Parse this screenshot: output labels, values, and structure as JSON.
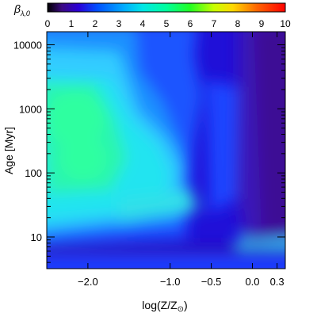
{
  "chart_data": {
    "type": "heatmap",
    "colorbar": {
      "label": "β",
      "label_sub": "λ,0",
      "range": [
        0,
        10
      ],
      "ticks": [
        "0",
        "1",
        "2",
        "3",
        "4",
        "5",
        "6",
        "7",
        "8",
        "9",
        "10"
      ],
      "colormap": "rainbow (black-purple-blue-cyan-green-yellow-red)"
    },
    "xlabel": "log(Z/Z",
    "xlabel_sub": "⊙",
    "xlabel_close": ")",
    "ylabel": "Age [Myr]",
    "x_scale": "linear",
    "y_scale": "log",
    "xlim": [
      -2.5,
      0.4
    ],
    "ylim": [
      3.2,
      16000
    ],
    "x_ticks": [
      {
        "value": -2.0,
        "label": "−2.0"
      },
      {
        "value": -1.0,
        "label": "−1.0"
      },
      {
        "value": -0.5,
        "label": "−0.5"
      },
      {
        "value": 0.0,
        "label": "0.0"
      },
      {
        "value": 0.3,
        "label": "0.3"
      }
    ],
    "y_ticks": [
      {
        "value": 10,
        "label": "10"
      },
      {
        "value": 100,
        "label": "100"
      },
      {
        "value": 1000,
        "label": "1000"
      },
      {
        "value": 10000,
        "label": "10000"
      }
    ],
    "grid": false
  }
}
